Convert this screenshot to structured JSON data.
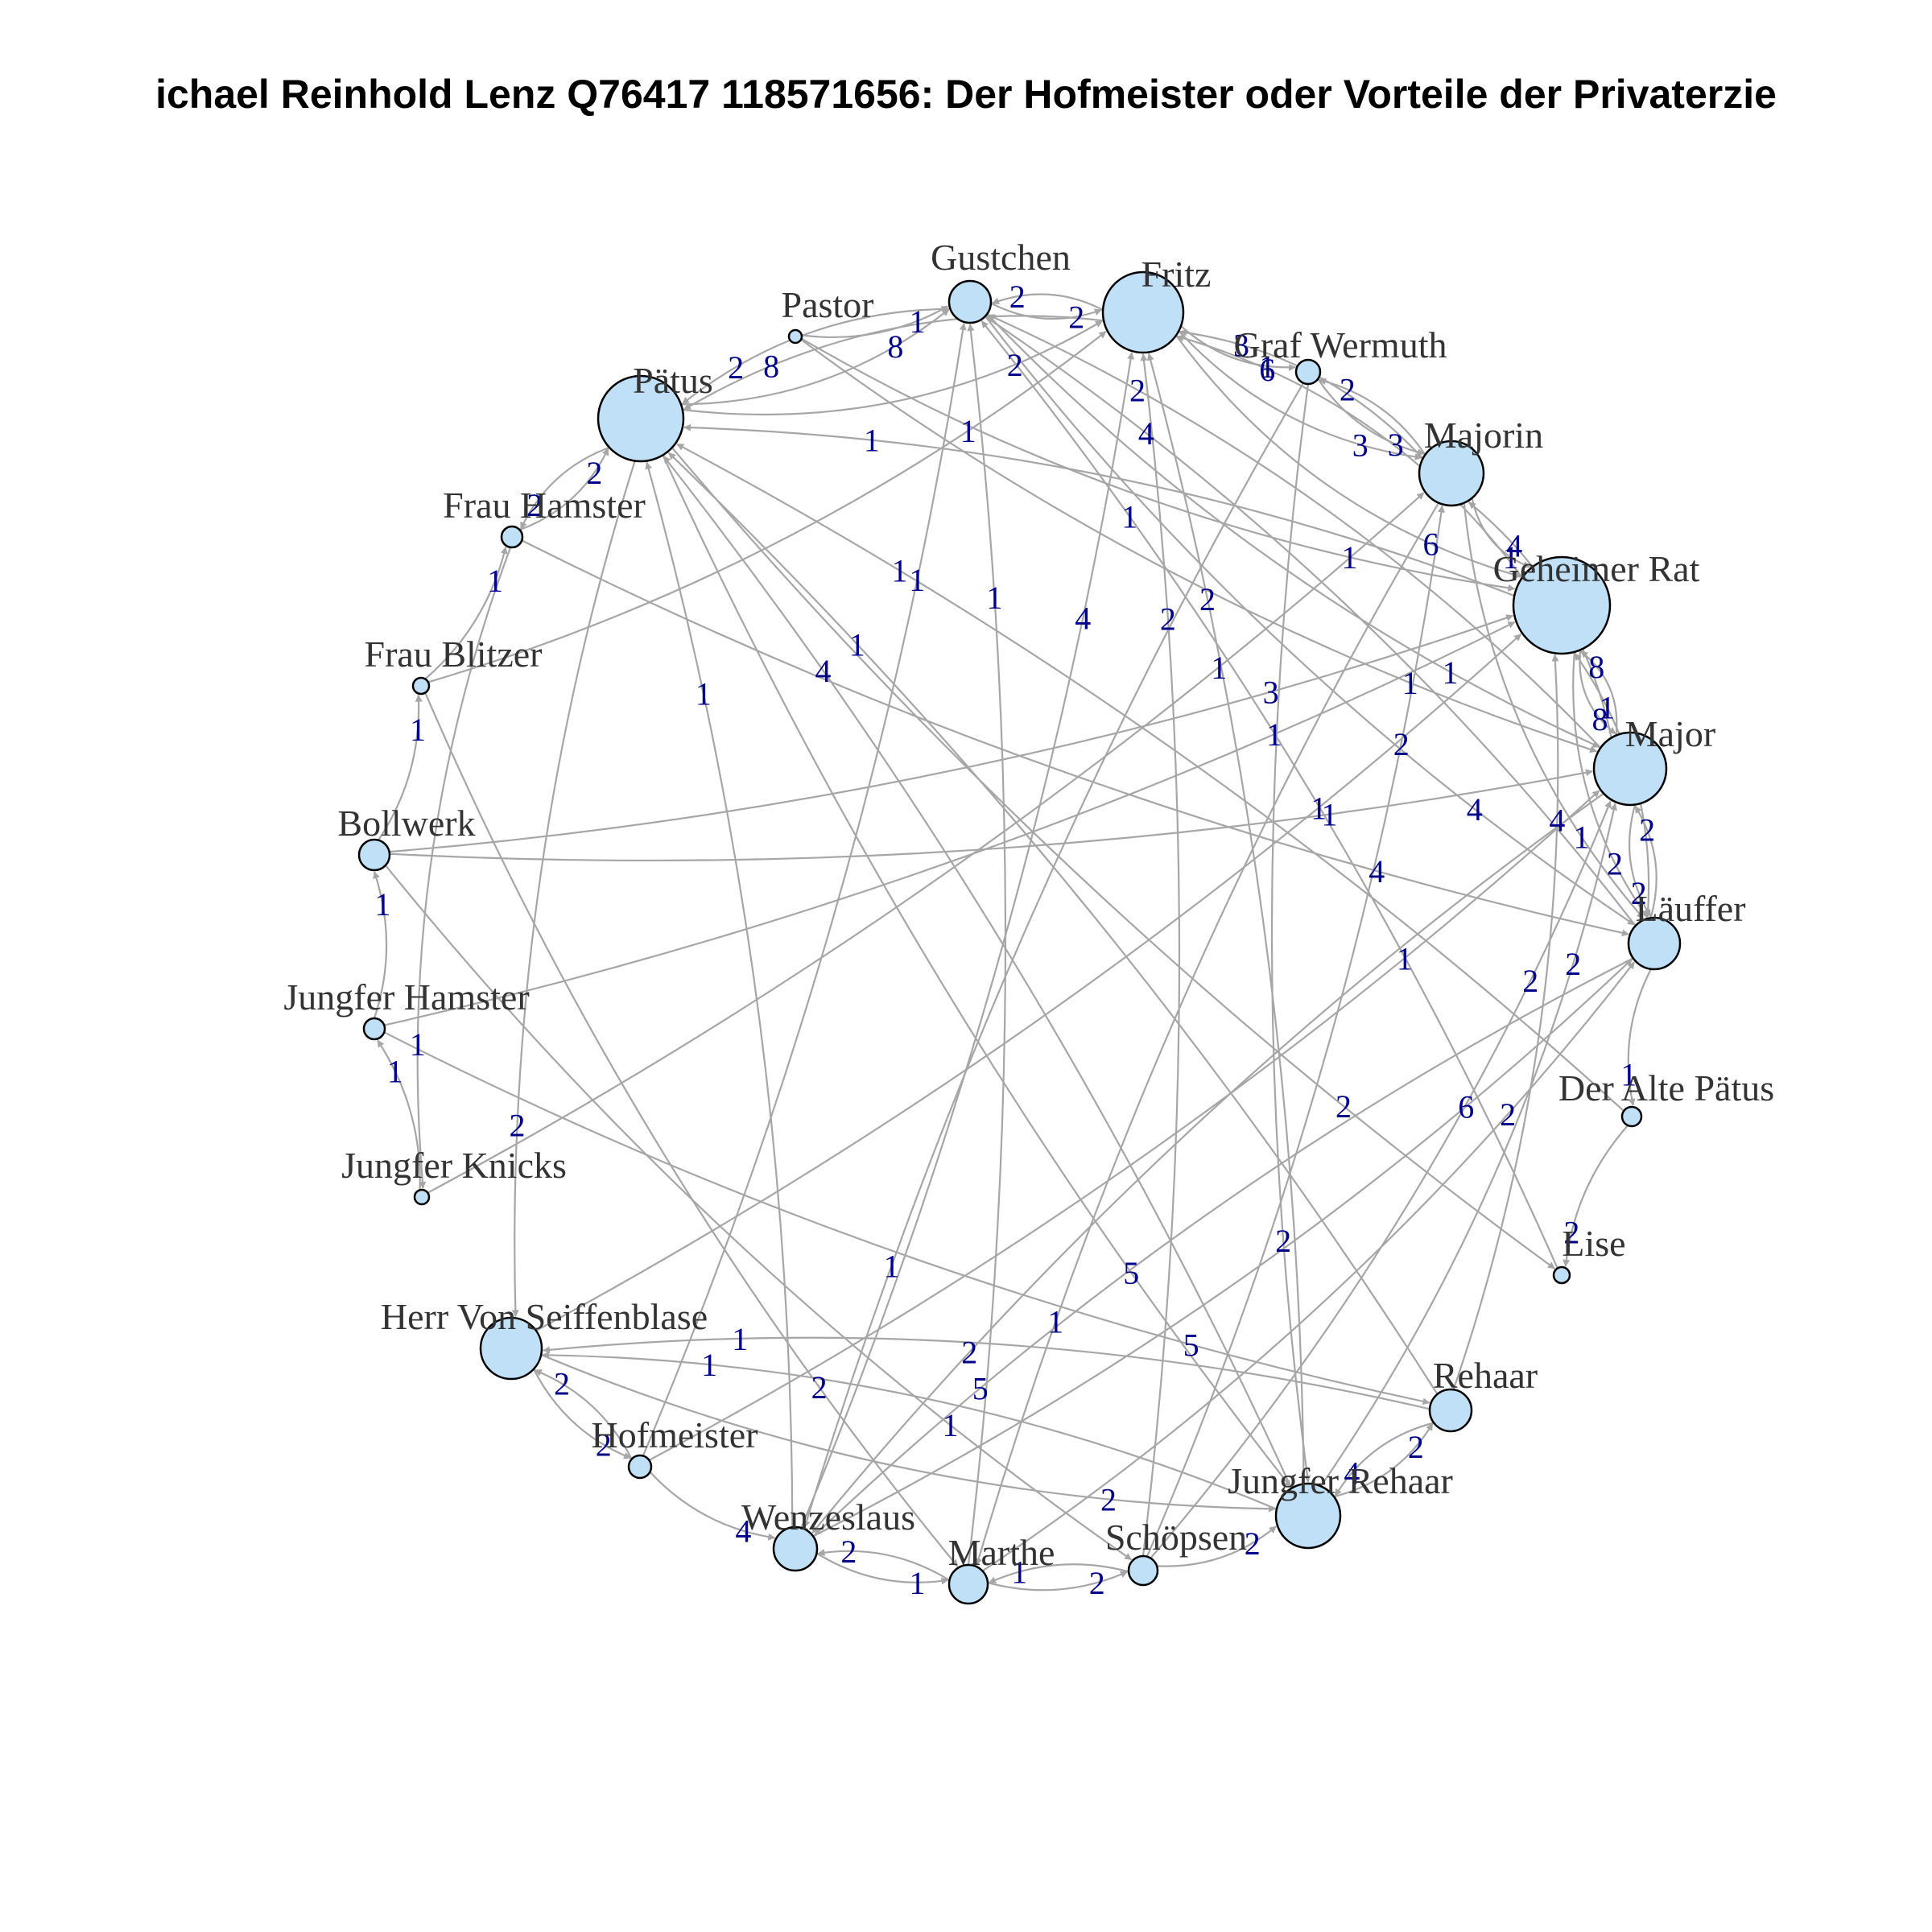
{
  "title": "ichael Reinhold Lenz Q76417 118571656: Der Hofmeister oder Vorteile der Privaterzie",
  "colors": {
    "node_fill": "#bfe0f7",
    "node_stroke": "#000000",
    "edge": "#a6a6a6",
    "edge_label": "#00008b",
    "node_label": "#333333"
  },
  "nodes": [
    {
      "id": "Gustchen",
      "label": "Gustchen"
    },
    {
      "id": "Fritz",
      "label": "Fritz"
    },
    {
      "id": "Graf Wermuth",
      "label": "Graf Wermuth"
    },
    {
      "id": "Majorin",
      "label": "Majorin"
    },
    {
      "id": "Geheimer Rat",
      "label": "Geheimer Rat"
    },
    {
      "id": "Major",
      "label": "Major"
    },
    {
      "id": "Läuffer",
      "label": "Läuffer"
    },
    {
      "id": "Der Alte Pätus",
      "label": "Der Alte Pätus"
    },
    {
      "id": "Lise",
      "label": "Lise"
    },
    {
      "id": "Rehaar",
      "label": "Rehaar"
    },
    {
      "id": "Jungfer Rehaar",
      "label": "Jungfer Rehaar"
    },
    {
      "id": "Schöpsen",
      "label": "Schöpsen"
    },
    {
      "id": "Marthe",
      "label": "Marthe"
    },
    {
      "id": "Wenzeslaus",
      "label": "Wenzeslaus"
    },
    {
      "id": "Hofmeister",
      "label": "Hofmeister"
    },
    {
      "id": "Herr Von Seiffenblase",
      "label": "Herr Von Seiffenblase"
    },
    {
      "id": "Jungfer Knicks",
      "label": "Jungfer Knicks"
    },
    {
      "id": "Jungfer Hamster",
      "label": "Jungfer Hamster"
    },
    {
      "id": "Bollwerk",
      "label": "Bollwerk"
    },
    {
      "id": "Frau Blitzer",
      "label": "Frau Blitzer"
    },
    {
      "id": "Frau Hamster",
      "label": "Frau Hamster"
    },
    {
      "id": "Pätus",
      "label": "Pätus"
    },
    {
      "id": "Pastor",
      "label": "Pastor"
    }
  ],
  "edges": [
    {
      "source": "Pastor",
      "target": "Gustchen",
      "weight": "1"
    },
    {
      "source": "Gustchen",
      "target": "Fritz",
      "weight": "2"
    },
    {
      "source": "Fritz",
      "target": "Gustchen",
      "weight": "2"
    },
    {
      "source": "Pätus",
      "target": "Gustchen",
      "weight": "8"
    },
    {
      "source": "Gustchen",
      "target": "Pätus",
      "weight": "2"
    },
    {
      "source": "Fritz",
      "target": "Graf Wermuth",
      "weight": "1"
    },
    {
      "source": "Graf Wermuth",
      "target": "Majorin",
      "weight": "3"
    },
    {
      "source": "Majorin",
      "target": "Graf Wermuth",
      "weight": "2"
    },
    {
      "source": "Fritz",
      "target": "Majorin",
      "weight": "3"
    },
    {
      "source": "Majorin",
      "target": "Fritz",
      "weight": "3"
    },
    {
      "source": "Fritz",
      "target": "Geheimer Rat",
      "weight": "6"
    },
    {
      "source": "Geheimer Rat",
      "target": "Fritz",
      "weight": "6"
    },
    {
      "source": "Majorin",
      "target": "Geheimer Rat",
      "weight": "1"
    },
    {
      "source": "Geheimer Rat",
      "target": "Major",
      "weight": "8"
    },
    {
      "source": "Major",
      "target": "Geheimer Rat",
      "weight": "8"
    },
    {
      "source": "Major",
      "target": "Läuffer",
      "weight": "2"
    },
    {
      "source": "Läuffer",
      "target": "Major",
      "weight": "2"
    },
    {
      "source": "Major",
      "target": "Majorin",
      "weight": "4"
    },
    {
      "source": "Läuffer",
      "target": "Der Alte Pätus",
      "weight": "1"
    },
    {
      "source": "Der Alte Pätus",
      "target": "Lise",
      "weight": "2"
    },
    {
      "source": "Rehaar",
      "target": "Jungfer Rehaar",
      "weight": "4"
    },
    {
      "source": "Jungfer Rehaar",
      "target": "Rehaar",
      "weight": "2"
    },
    {
      "source": "Schöpsen",
      "target": "Jungfer Rehaar",
      "weight": "2"
    },
    {
      "source": "Marthe",
      "target": "Schöpsen",
      "weight": "2"
    },
    {
      "source": "Schöpsen",
      "target": "Marthe",
      "weight": "1"
    },
    {
      "source": "Wenzeslaus",
      "target": "Marthe",
      "weight": "1"
    },
    {
      "source": "Marthe",
      "target": "Wenzeslaus",
      "weight": "2"
    },
    {
      "source": "Hofmeister",
      "target": "Wenzeslaus",
      "weight": "4"
    },
    {
      "source": "Herr Von Seiffenblase",
      "target": "Hofmeister",
      "weight": "2"
    },
    {
      "source": "Hofmeister",
      "target": "Herr Von Seiffenblase",
      "weight": "2"
    },
    {
      "source": "Jungfer Knicks",
      "target": "Jungfer Hamster",
      "weight": "1"
    },
    {
      "source": "Jungfer Hamster",
      "target": "Bollwerk",
      "weight": "1"
    },
    {
      "source": "Bollwerk",
      "target": "Frau Blitzer",
      "weight": "1"
    },
    {
      "source": "Frau Blitzer",
      "target": "Frau Hamster",
      "weight": "1"
    },
    {
      "source": "Frau Hamster",
      "target": "Pätus",
      "weight": "2"
    },
    {
      "source": "Pätus",
      "target": "Frau Hamster",
      "weight": "2"
    },
    {
      "source": "Pätus",
      "target": "Fritz",
      "weight": "2"
    },
    {
      "source": "Fritz",
      "target": "Pätus",
      "weight": "8"
    },
    {
      "source": "Pätus",
      "target": "Herr Von Seiffenblase",
      "weight": "2"
    },
    {
      "source": "Pätus",
      "target": "Jungfer Rehaar",
      "weight": "5"
    },
    {
      "source": "Jungfer Rehaar",
      "target": "Pätus",
      "weight": "4"
    },
    {
      "source": "Läuffer",
      "target": "Gustchen",
      "weight": "4"
    },
    {
      "source": "Gustchen",
      "target": "Läuffer",
      "weight": "4"
    },
    {
      "source": "Läuffer",
      "target": "Wenzeslaus",
      "weight": "5"
    },
    {
      "source": "Wenzeslaus",
      "target": "Läuffer",
      "weight": "6"
    },
    {
      "source": "Läuffer",
      "target": "Geheimer Rat",
      "weight": "1"
    },
    {
      "source": "Major",
      "target": "Gustchen",
      "weight": "2"
    },
    {
      "source": "Gustchen",
      "target": "Major",
      "weight": "1"
    },
    {
      "source": "Majorin",
      "target": "Läuffer",
      "weight": "1"
    },
    {
      "source": "Geheimer Rat",
      "target": "Pätus",
      "weight": "1"
    },
    {
      "source": "Geheimer Rat",
      "target": "Läuffer",
      "weight": "2"
    },
    {
      "source": "Bollwerk",
      "target": "Major",
      "weight": "1"
    },
    {
      "source": "Jungfer Hamster",
      "target": "Geheimer Rat",
      "weight": "1"
    },
    {
      "source": "Frau Hamster",
      "target": "Jungfer Knicks",
      "weight": "1"
    },
    {
      "source": "Frau Blitzer",
      "target": "Fritz",
      "weight": "1"
    },
    {
      "source": "Herr Von Seiffenblase",
      "target": "Jungfer Rehaar",
      "weight": "2"
    },
    {
      "source": "Jungfer Rehaar",
      "target": "Herr Von Seiffenblase",
      "weight": "1"
    },
    {
      "source": "Rehaar",
      "target": "Herr Von Seiffenblase",
      "weight": "1"
    },
    {
      "source": "Schöpsen",
      "target": "Fritz",
      "weight": "2"
    },
    {
      "source": "Marthe",
      "target": "Gustchen",
      "weight": "1"
    },
    {
      "source": "Wenzeslaus",
      "target": "Pätus",
      "weight": "1"
    },
    {
      "source": "Hofmeister",
      "target": "Major",
      "weight": "1"
    },
    {
      "source": "Jungfer Hamster",
      "target": "Rehaar",
      "weight": "5"
    },
    {
      "source": "Bollwerk",
      "target": "Geheimer Rat",
      "weight": "3"
    },
    {
      "source": "Jungfer Knicks",
      "target": "Majorin",
      "weight": "1"
    },
    {
      "source": "Lise",
      "target": "Gustchen",
      "weight": "1"
    },
    {
      "source": "Der Alte Pätus",
      "target": "Pätus",
      "weight": "1"
    },
    {
      "source": "Pastor",
      "target": "Geheimer Rat",
      "weight": "1"
    },
    {
      "source": "Rehaar",
      "target": "Geheimer Rat",
      "weight": "4"
    },
    {
      "source": "Schöpsen",
      "target": "Major",
      "weight": "2"
    },
    {
      "source": "Graf Wermuth",
      "target": "Wenzeslaus",
      "weight": "1"
    },
    {
      "source": "Frau Hamster",
      "target": "Läuffer",
      "weight": "4"
    },
    {
      "source": "Jungfer Rehaar",
      "target": "Fritz",
      "weight": "2"
    },
    {
      "source": "Marthe",
      "target": "Läuffer",
      "weight": "2"
    },
    {
      "source": "Hofmeister",
      "target": "Gustchen",
      "weight": "1"
    },
    {
      "source": "Jungfer Rehaar",
      "target": "Major",
      "weight": "2"
    },
    {
      "source": "Schöpsen",
      "target": "Majorin",
      "weight": "2"
    },
    {
      "source": "Herr Von Seiffenblase",
      "target": "Geheimer Rat",
      "weight": "1"
    },
    {
      "source": "Wenzeslaus",
      "target": "Fritz",
      "weight": "4"
    },
    {
      "source": "Pätus",
      "target": "Lise",
      "weight": "2"
    },
    {
      "source": "Bollwerk",
      "target": "Schöpsen",
      "weight": "1"
    },
    {
      "source": "Frau Blitzer",
      "target": "Marthe",
      "weight": "2"
    },
    {
      "source": "Majorin",
      "target": "Marthe",
      "weight": "1"
    },
    {
      "source": "Major",
      "target": "Wenzeslaus",
      "weight": "2"
    },
    {
      "source": "Graf Wermuth",
      "target": "Jungfer Rehaar",
      "weight": "2"
    },
    {
      "source": "Rehaar",
      "target": "Pätus",
      "weight": "1"
    },
    {
      "source": "Pastor",
      "target": "Major",
      "weight": "1"
    }
  ]
}
